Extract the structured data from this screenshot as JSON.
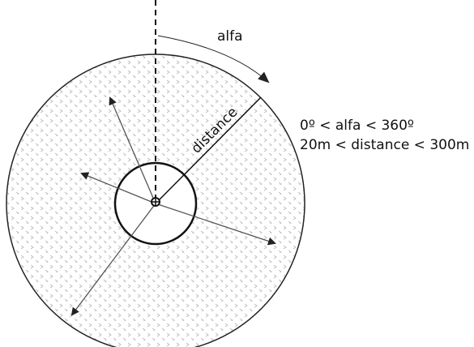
{
  "diagram": {
    "angle_label": "alfa",
    "distance_label": "distance",
    "ranges": [
      "0º < alfa < 360º",
      "20m < distance < 300m"
    ]
  }
}
